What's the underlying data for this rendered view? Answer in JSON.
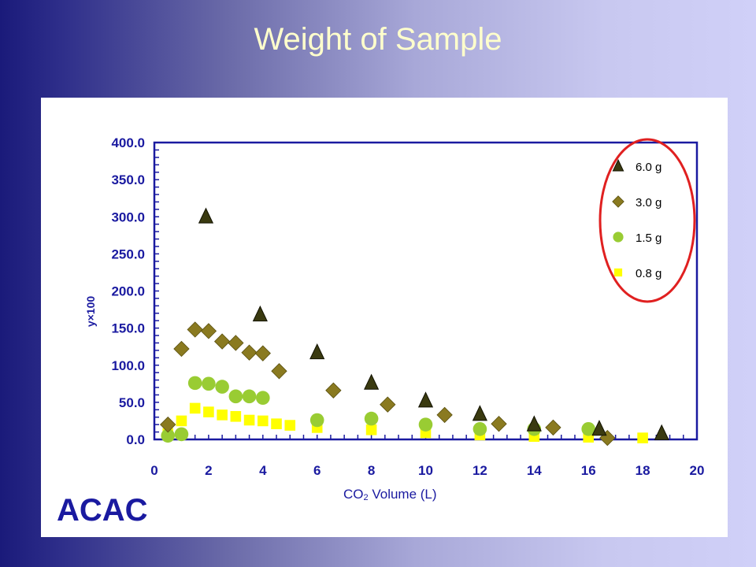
{
  "slide": {
    "title": "Weight of Sample",
    "logo": "ACAC"
  },
  "colors": {
    "background_left": "#1a1a7a",
    "background_right": "#d0d0f8",
    "title": "#ffffcc",
    "axis_text": "#1a1aa0",
    "axis_line": "#1a1aa0",
    "highlight_ellipse": "#e02020"
  },
  "chart_data": {
    "type": "scatter",
    "title": "",
    "xlabel_main": "CO",
    "xlabel_sub": "2",
    "xlabel_rest": " Volume (L)",
    "ylabel": "y×100",
    "xlim": [
      0,
      20
    ],
    "ylim": [
      0,
      400
    ],
    "x_ticks": [
      0,
      2,
      4,
      6,
      8,
      10,
      12,
      14,
      16,
      18,
      20
    ],
    "y_ticks": [
      0,
      50,
      100,
      150,
      200,
      250,
      300,
      350,
      400
    ],
    "y_tick_labels": [
      "0.0",
      "50.0",
      "100.0",
      "150.0",
      "200.0",
      "250.0",
      "300.0",
      "350.0",
      "400.0"
    ],
    "grid": false,
    "legend_position": "top-right",
    "legend_highlighted": true,
    "series": [
      {
        "name": "6.0 g",
        "marker": "triangle",
        "color": "#3a3a10",
        "points": [
          [
            1.9,
            300
          ],
          [
            3.9,
            168
          ],
          [
            6.0,
            117
          ],
          [
            8.0,
            76
          ],
          [
            10.0,
            52
          ],
          [
            12.0,
            34
          ],
          [
            14.0,
            20
          ],
          [
            16.4,
            14
          ],
          [
            18.7,
            8
          ]
        ]
      },
      {
        "name": "3.0 g",
        "marker": "diamond",
        "color": "#8a7a20",
        "points": [
          [
            0.5,
            20
          ],
          [
            1.0,
            122
          ],
          [
            1.5,
            148
          ],
          [
            2.0,
            146
          ],
          [
            2.5,
            132
          ],
          [
            3.0,
            130
          ],
          [
            3.5,
            117
          ],
          [
            4.0,
            116
          ],
          [
            4.6,
            92
          ],
          [
            6.6,
            66
          ],
          [
            8.6,
            47
          ],
          [
            10.7,
            33
          ],
          [
            12.7,
            21
          ],
          [
            14.7,
            16
          ],
          [
            16.7,
            2
          ]
        ]
      },
      {
        "name": "1.5 g",
        "marker": "circle",
        "color": "#99cc33",
        "points": [
          [
            0.5,
            5
          ],
          [
            1.0,
            7
          ],
          [
            1.5,
            76
          ],
          [
            2.0,
            75
          ],
          [
            2.5,
            71
          ],
          [
            3.0,
            58
          ],
          [
            3.5,
            58
          ],
          [
            4.0,
            56
          ],
          [
            6.0,
            26
          ],
          [
            8.0,
            28
          ],
          [
            10.0,
            20
          ],
          [
            12.0,
            14
          ],
          [
            14.0,
            14
          ],
          [
            16.0,
            14
          ]
        ]
      },
      {
        "name": "0.8 g",
        "marker": "square",
        "color": "#ffff00",
        "points": [
          [
            0.5,
            8
          ],
          [
            1.0,
            25
          ],
          [
            1.5,
            42
          ],
          [
            2.0,
            37
          ],
          [
            2.5,
            33
          ],
          [
            3.0,
            31
          ],
          [
            3.5,
            26
          ],
          [
            4.0,
            25
          ],
          [
            4.5,
            21
          ],
          [
            5.0,
            19
          ],
          [
            6.0,
            16
          ],
          [
            8.0,
            13
          ],
          [
            10.0,
            9
          ],
          [
            12.0,
            6
          ],
          [
            14.0,
            4
          ],
          [
            16.0,
            3
          ],
          [
            18.0,
            2
          ]
        ]
      }
    ]
  }
}
